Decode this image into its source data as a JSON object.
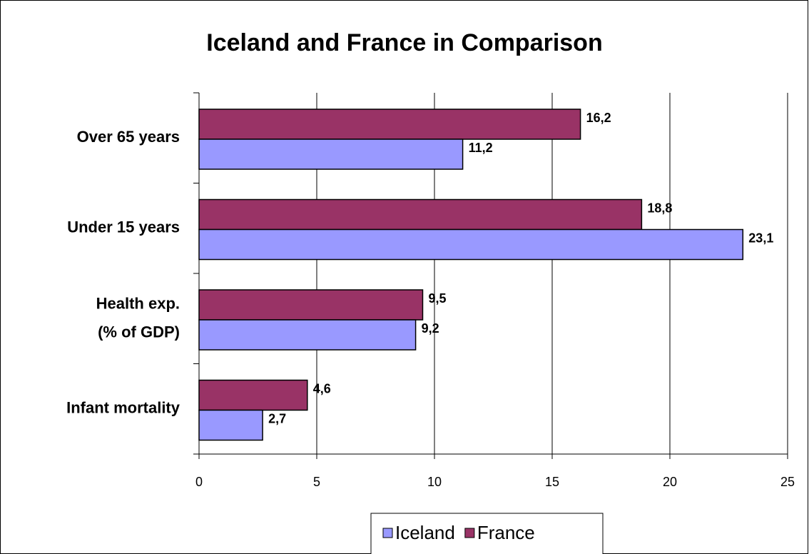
{
  "chart_data": {
    "type": "barh",
    "title": "Iceland and France in Comparison",
    "categories": [
      "Over 65 years",
      "Under 15 years",
      "Health exp.\n(% of GDP)",
      "Infant mortality"
    ],
    "series": [
      {
        "name": "France",
        "color": "#993366",
        "values": [
          16.2,
          18.8,
          9.5,
          4.6
        ],
        "value_labels": [
          "16,2",
          "18,8",
          "9,5",
          "4,6"
        ]
      },
      {
        "name": "Iceland",
        "color": "#9999ff",
        "values": [
          11.2,
          23.1,
          9.2,
          2.7
        ],
        "value_labels": [
          "11,2",
          "23,1",
          "9,2",
          "2,7"
        ]
      }
    ],
    "legend_order": [
      "Iceland",
      "France"
    ],
    "xlim": [
      0,
      25
    ],
    "xticks": [
      0,
      5,
      10,
      15,
      20,
      25
    ],
    "grid": true,
    "legend": "bottom"
  }
}
